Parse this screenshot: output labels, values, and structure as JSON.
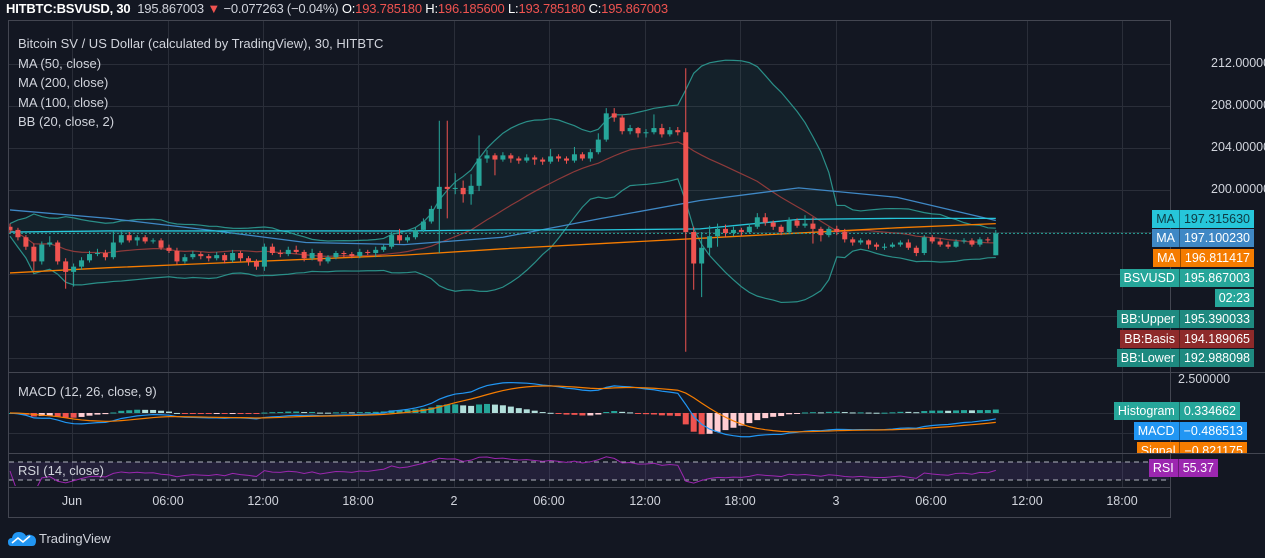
{
  "header": {
    "symbol": "HITBTC:BSVUSD, 30",
    "price": "195.867003",
    "direction_icon": "triangle-down-icon",
    "change": "−0.077263 (−0.04%)",
    "open_label": "O:",
    "open": "193.785180",
    "high_label": "H:",
    "high": "196.185600",
    "low_label": "L:",
    "low": "193.785180",
    "close_label": "C:",
    "close": "195.867003"
  },
  "legend": {
    "title": "Bitcoin SV / US Dollar (calculated by TradingView), 30, HITBTC",
    "studies": [
      "MA (50, close)",
      "MA (200, close)",
      "MA (100, close)",
      "BB (20, close, 2)"
    ]
  },
  "price_axis": [
    "212.000000",
    "208.000000",
    "204.000000",
    "200.000000"
  ],
  "price_labels": [
    {
      "name": "MA",
      "value": "197.315630",
      "bg": "#26c6da",
      "fg": "#0d3b44"
    },
    {
      "name": "MA",
      "value": "197.100230",
      "bg": "#3f88c5",
      "fg": "#ffffff"
    },
    {
      "name": "MA",
      "value": "196.811417",
      "bg": "#f57c00",
      "fg": "#ffffff"
    },
    {
      "name": "BSVUSD",
      "value": "195.867003",
      "bg": "#26a69a",
      "fg": "#ffffff"
    },
    {
      "name": "",
      "value": "02:23",
      "bg": "#26a69a",
      "fg": "#ffffff"
    },
    {
      "name": "BB:Upper",
      "value": "195.390033",
      "bg": "#1e8a80",
      "fg": "#ffffff"
    },
    {
      "name": "BB:Basis",
      "value": "194.189065",
      "bg": "#8e2a2a",
      "fg": "#ffffff"
    },
    {
      "name": "BB:Lower",
      "value": "192.988098",
      "bg": "#1e8a80",
      "fg": "#ffffff"
    }
  ],
  "macd": {
    "title": "MACD (12, 26, close, 9)",
    "axis": "2.500000",
    "labels": [
      {
        "name": "Histogram",
        "value": "0.334662",
        "bg": "#26a69a"
      },
      {
        "name": "MACD",
        "value": "−0.486513",
        "bg": "#2196f3"
      },
      {
        "name": "Signal",
        "value": "−0.821175",
        "bg": "#f57c00"
      }
    ]
  },
  "rsi": {
    "title": "RSI (14, close)",
    "label": {
      "name": "RSI",
      "value": "55.37",
      "bg": "#9c27b0"
    }
  },
  "time_axis": [
    "Jun",
    "06:00",
    "12:00",
    "18:00",
    "2",
    "06:00",
    "12:00",
    "18:00",
    "3",
    "06:00",
    "12:00",
    "18:00"
  ],
  "footer": {
    "brand": "TradingView",
    "logo_icon": "tradingview-cloud-icon"
  },
  "colors": {
    "up": "#26a69a",
    "down": "#ef5350",
    "background": "#131722",
    "ma50": "#3f88c5",
    "ma200": "#f57c00",
    "ma100": "#26c6da",
    "bb": "#2a8f88",
    "bb_basis": "#8e3a3a",
    "macd": "#2196f3",
    "signal": "#f57c00",
    "rsi": "#9c27b0"
  },
  "chart_data": {
    "type": "candlestick",
    "interval": "30",
    "ylim": [
      184,
      213
    ],
    "candles_ohlc": [
      [
        196.5,
        196.8,
        195.9,
        196.2
      ],
      [
        196.2,
        196.4,
        195.2,
        195.5
      ],
      [
        195.5,
        195.7,
        194.3,
        194.6
      ],
      [
        194.6,
        194.9,
        192.3,
        193.2
      ],
      [
        193.2,
        195.1,
        192.9,
        194.8
      ],
      [
        194.8,
        195.6,
        194.6,
        195.0
      ],
      [
        195.0,
        195.2,
        192.9,
        193.2
      ],
      [
        193.2,
        193.5,
        190.6,
        192.2
      ],
      [
        192.2,
        193.0,
        190.8,
        192.7
      ],
      [
        192.7,
        193.6,
        192.4,
        193.3
      ],
      [
        193.3,
        194.2,
        193.1,
        193.9
      ],
      [
        193.9,
        194.4,
        193.7,
        194.0
      ],
      [
        194.0,
        194.3,
        193.3,
        193.6
      ],
      [
        193.6,
        196.1,
        193.4,
        195.0
      ],
      [
        195.0,
        196.2,
        194.8,
        195.7
      ],
      [
        195.7,
        196.0,
        195.0,
        195.2
      ],
      [
        195.2,
        195.7,
        194.7,
        195.5
      ],
      [
        195.5,
        195.7,
        194.9,
        195.1
      ],
      [
        195.1,
        195.4,
        194.9,
        195.2
      ],
      [
        195.2,
        195.4,
        194.3,
        194.5
      ],
      [
        194.5,
        194.8,
        194.0,
        194.2
      ],
      [
        194.2,
        194.5,
        192.9,
        193.2
      ],
      [
        193.2,
        193.9,
        193.0,
        193.6
      ],
      [
        193.6,
        194.2,
        193.4,
        193.9
      ],
      [
        193.9,
        194.1,
        193.4,
        193.7
      ],
      [
        193.7,
        193.9,
        193.2,
        193.5
      ],
      [
        193.5,
        194.1,
        193.3,
        193.8
      ],
      [
        193.8,
        194.0,
        193.0,
        193.3
      ],
      [
        193.3,
        194.3,
        193.1,
        194.0
      ],
      [
        194.0,
        194.2,
        193.2,
        193.5
      ],
      [
        193.5,
        193.7,
        192.8,
        193.2
      ],
      [
        193.2,
        193.4,
        192.4,
        192.7
      ],
      [
        192.7,
        194.9,
        192.3,
        194.6
      ],
      [
        194.6,
        194.9,
        193.8,
        194.0
      ],
      [
        194.0,
        194.3,
        193.6,
        193.9
      ],
      [
        193.9,
        194.6,
        193.7,
        194.3
      ],
      [
        194.3,
        194.7,
        193.9,
        194.1
      ],
      [
        194.1,
        194.3,
        193.2,
        193.5
      ],
      [
        193.5,
        194.4,
        193.3,
        194.0
      ],
      [
        194.0,
        194.2,
        192.8,
        193.2
      ],
      [
        193.2,
        193.8,
        193.0,
        193.6
      ],
      [
        193.6,
        194.2,
        193.4,
        194.0
      ],
      [
        194.0,
        194.2,
        193.6,
        193.9
      ],
      [
        193.9,
        194.1,
        193.5,
        193.7
      ],
      [
        193.7,
        194.4,
        193.5,
        194.1
      ],
      [
        194.1,
        194.3,
        193.8,
        194.0
      ],
      [
        194.0,
        194.6,
        193.6,
        194.3
      ],
      [
        194.3,
        194.8,
        194.1,
        194.6
      ],
      [
        194.6,
        196.0,
        194.4,
        195.7
      ],
      [
        195.7,
        196.3,
        194.9,
        195.2
      ],
      [
        195.2,
        195.7,
        195.0,
        195.5
      ],
      [
        195.5,
        196.4,
        195.3,
        196.2
      ],
      [
        196.2,
        197.3,
        196.0,
        197.0
      ],
      [
        197.0,
        198.5,
        196.8,
        198.2
      ],
      [
        198.2,
        206.6,
        194.0,
        200.3
      ],
      [
        200.3,
        206.6,
        197.3,
        200.1
      ],
      [
        200.1,
        201.6,
        199.6,
        200.2
      ],
      [
        200.2,
        200.9,
        198.8,
        199.6
      ],
      [
        199.6,
        201.5,
        198.6,
        200.4
      ],
      [
        200.4,
        205.2,
        199.9,
        203.0
      ],
      [
        203.0,
        203.8,
        202.6,
        203.3
      ],
      [
        203.3,
        203.5,
        201.4,
        202.9
      ],
      [
        202.9,
        203.6,
        202.7,
        203.3
      ],
      [
        203.3,
        203.5,
        202.6,
        203.0
      ],
      [
        203.0,
        203.2,
        202.5,
        202.8
      ],
      [
        202.8,
        203.4,
        202.6,
        203.1
      ],
      [
        203.1,
        203.3,
        202.4,
        202.9
      ],
      [
        202.9,
        203.1,
        202.4,
        202.7
      ],
      [
        202.7,
        203.9,
        202.5,
        203.2
      ],
      [
        203.2,
        203.4,
        202.7,
        203.0
      ],
      [
        203.0,
        203.2,
        202.5,
        202.8
      ],
      [
        202.8,
        204.1,
        202.6,
        203.4
      ],
      [
        203.4,
        203.6,
        202.8,
        203.0
      ],
      [
        203.0,
        203.9,
        202.7,
        203.6
      ],
      [
        203.6,
        205.4,
        203.4,
        204.8
      ],
      [
        204.8,
        207.8,
        204.6,
        207.3
      ],
      [
        207.3,
        207.8,
        206.5,
        206.9
      ],
      [
        206.9,
        207.1,
        205.3,
        205.6
      ],
      [
        205.6,
        206.2,
        205.3,
        205.9
      ],
      [
        205.9,
        206.0,
        205.0,
        205.4
      ],
      [
        205.4,
        205.8,
        205.0,
        205.5
      ],
      [
        205.5,
        207.2,
        205.3,
        205.9
      ],
      [
        205.9,
        206.3,
        205.0,
        205.3
      ],
      [
        205.3,
        206.0,
        205.1,
        205.7
      ],
      [
        205.7,
        206.0,
        205.2,
        205.5
      ],
      [
        205.5,
        211.6,
        184.6,
        196.0
      ],
      [
        196.0,
        196.5,
        190.5,
        193.0
      ],
      [
        193.0,
        196.0,
        189.8,
        194.5
      ],
      [
        194.5,
        196.6,
        193.8,
        195.6
      ],
      [
        195.6,
        196.8,
        194.6,
        196.3
      ],
      [
        196.3,
        196.7,
        195.5,
        195.9
      ],
      [
        195.9,
        196.5,
        195.6,
        196.2
      ],
      [
        196.2,
        196.4,
        195.6,
        196.0
      ],
      [
        196.0,
        196.8,
        195.9,
        196.5
      ],
      [
        196.5,
        197.8,
        196.3,
        197.4
      ],
      [
        197.4,
        197.8,
        196.6,
        196.9
      ],
      [
        196.9,
        197.1,
        196.2,
        196.5
      ],
      [
        196.5,
        196.7,
        195.7,
        196.0
      ],
      [
        196.0,
        197.4,
        195.8,
        197.1
      ],
      [
        197.1,
        197.3,
        196.4,
        196.6
      ],
      [
        196.6,
        197.6,
        196.4,
        196.8
      ],
      [
        196.8,
        197.4,
        194.9,
        196.3
      ],
      [
        196.3,
        196.5,
        195.1,
        195.7
      ],
      [
        195.7,
        196.5,
        195.5,
        196.3
      ],
      [
        196.3,
        196.6,
        195.7,
        196.0
      ],
      [
        196.0,
        196.3,
        195.0,
        195.3
      ],
      [
        195.3,
        195.5,
        194.7,
        195.0
      ],
      [
        195.0,
        195.4,
        194.8,
        195.2
      ],
      [
        195.2,
        195.3,
        194.4,
        194.8
      ],
      [
        194.8,
        195.0,
        194.3,
        194.6
      ],
      [
        194.5,
        194.9,
        194.3,
        194.6
      ],
      [
        194.6,
        195.0,
        194.5,
        194.8
      ],
      [
        194.8,
        195.2,
        194.6,
        195.0
      ],
      [
        195.0,
        195.3,
        194.3,
        194.5
      ],
      [
        194.5,
        194.7,
        193.7,
        194.0
      ],
      [
        194.0,
        195.7,
        193.8,
        195.5
      ],
      [
        195.5,
        195.7,
        194.9,
        195.1
      ],
      [
        195.1,
        195.4,
        194.6,
        194.8
      ],
      [
        194.8,
        195.1,
        194.4,
        194.6
      ],
      [
        194.6,
        195.3,
        194.5,
        195.1
      ],
      [
        195.1,
        195.4,
        194.9,
        195.2
      ],
      [
        195.2,
        195.4,
        194.6,
        194.8
      ],
      [
        194.8,
        195.5,
        194.6,
        195.3
      ],
      [
        195.3,
        195.5,
        195.0,
        195.2
      ],
      [
        193.785,
        196.186,
        193.785,
        195.867
      ]
    ],
    "series": [
      {
        "name": "MA (50, close)",
        "values": [
          198.1,
          197.3,
          196.2,
          195.0,
          194.8,
          195.5,
          197.3,
          199.0,
          200.2,
          199.3,
          197.1
        ]
      },
      {
        "name": "MA (200, close)",
        "values": [
          192.1,
          192.6,
          193.0,
          193.4,
          193.8,
          194.4,
          194.9,
          195.4,
          195.9,
          196.4,
          196.8
        ]
      },
      {
        "name": "MA (100, close)",
        "values": [
          196.0,
          196.1,
          196.1,
          196.1,
          196.1,
          196.2,
          196.2,
          196.3,
          197.2,
          197.3,
          197.3
        ]
      }
    ],
    "rsi_bands": [
      30,
      70
    ]
  }
}
